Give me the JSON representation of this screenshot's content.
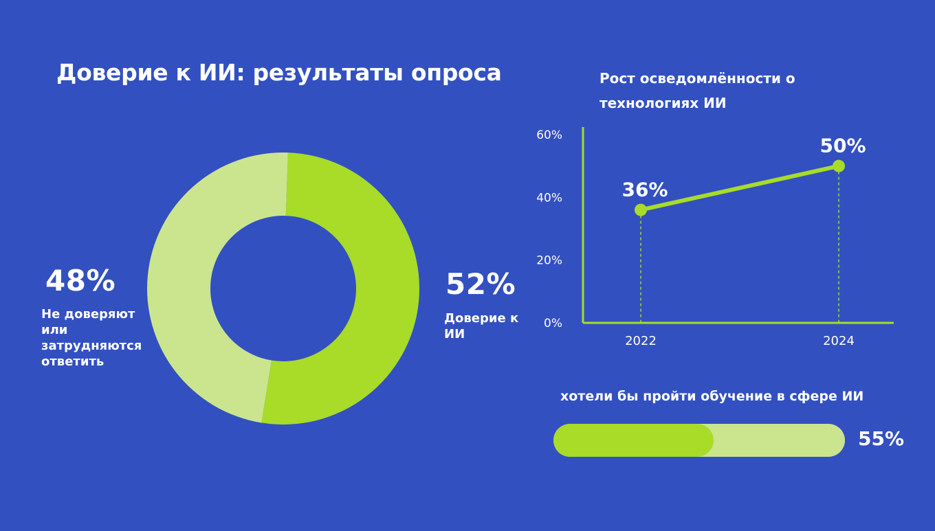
{
  "title": "Доверие к ИИ: результаты опроса",
  "colors": {
    "background": "#3350c1",
    "accent": "#a8dc28",
    "accent_light": "#cbe58e",
    "text": "#ffffff"
  },
  "donut": {
    "trust_pct_text": "52%",
    "trust_label": "Доверие к ИИ",
    "distrust_pct_text": "48%",
    "distrust_label": "Не доверяют или затрудняются ответить"
  },
  "line": {
    "title": "Рост осведомлённости о технологиях ИИ"
  },
  "progress": {
    "label": "хотели бы пройти обучение в сфере ИИ",
    "value_text": "55%",
    "value": 55
  },
  "chart_data": [
    {
      "type": "pie",
      "categories": [
        "Доверие к ИИ",
        "Не доверяют или затрудняются ответить"
      ],
      "values": [
        52,
        48
      ],
      "colors": [
        "#a8dc28",
        "#cbe58e"
      ]
    },
    {
      "type": "line",
      "title": "Рост осведомлённости о технологиях ИИ",
      "x": [
        "2022",
        "2024"
      ],
      "values": [
        36,
        50
      ],
      "data_labels": [
        "36%",
        "50%"
      ],
      "ylim": [
        0,
        60
      ],
      "yticks": [
        "0%",
        "20%",
        "40%",
        "60%"
      ],
      "grid": false
    }
  ]
}
